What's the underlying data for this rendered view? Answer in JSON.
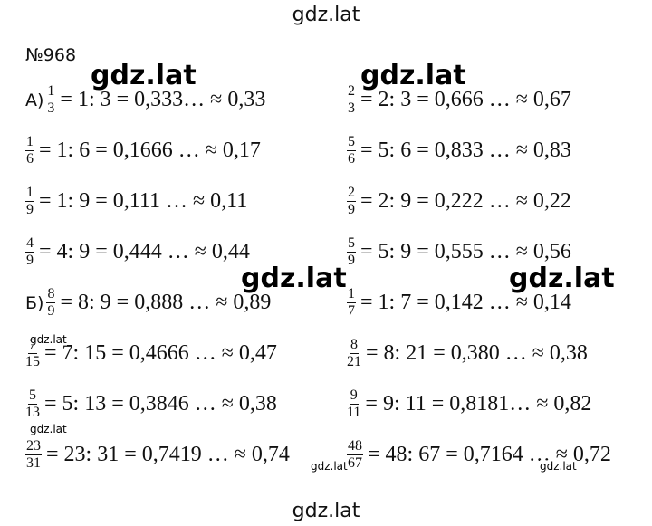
{
  "header": {
    "site": "gdz.lat"
  },
  "title": "№968",
  "rows": [
    {
      "left": {
        "label": "А)",
        "num": "1",
        "den": "3",
        "text": "= 1: 3 = 0,333… ≈ 0,33"
      },
      "right": {
        "num": "2",
        "den": "3",
        "text": "= 2: 3 = 0,666 … ≈ 0,67"
      }
    },
    {
      "left": {
        "num": "1",
        "den": "6",
        "text": "= 1: 6 = 0,1666 … ≈ 0,17"
      },
      "right": {
        "num": "5",
        "den": "6",
        "text": "= 5: 6 = 0,833 … ≈ 0,83"
      }
    },
    {
      "left": {
        "num": "1",
        "den": "9",
        "text": "= 1: 9 = 0,111 … ≈ 0,11"
      },
      "right": {
        "num": "2",
        "den": "9",
        "text": "= 2: 9 = 0,222 … ≈ 0,22"
      }
    },
    {
      "left": {
        "num": "4",
        "den": "9",
        "text": "= 4: 9 = 0,444 … ≈ 0,44"
      },
      "right": {
        "num": "5",
        "den": "9",
        "text": "= 5: 9 = 0,555 … ≈ 0,56"
      }
    },
    {
      "left": {
        "label": "Б)",
        "num": "8",
        "den": "9",
        "text": "= 8: 9 = 0,888 … ≈ 0,89"
      },
      "right": {
        "num": "1",
        "den": "7",
        "text": "= 1: 7 = 0,142 … ≈ 0,14"
      }
    },
    {
      "left": {
        "num": "7",
        "den": "15",
        "text": "= 7: 15 = 0,4666 … ≈ 0,47"
      },
      "right": {
        "num": "8",
        "den": "21",
        "text": "= 8: 21 = 0,380 … ≈ 0,38"
      }
    },
    {
      "left": {
        "num": "5",
        "den": "13",
        "text": "= 5: 13 = 0,3846 … ≈ 0,38"
      },
      "right": {
        "num": "9",
        "den": "11",
        "text": "= 9: 11 = 0,8181… ≈ 0,82"
      }
    },
    {
      "left": {
        "num": "23",
        "den": "31",
        "text": "= 23: 31 = 0,7419 … ≈ 0,74"
      },
      "right": {
        "num": "48",
        "den": "67",
        "text": "= 48: 67 = 0,7164 … ≈ 0,72"
      }
    }
  ],
  "watermarks": {
    "big": "gdz.lat",
    "small": "gdz.lat"
  },
  "footer": {
    "site": "gdz.lat"
  }
}
